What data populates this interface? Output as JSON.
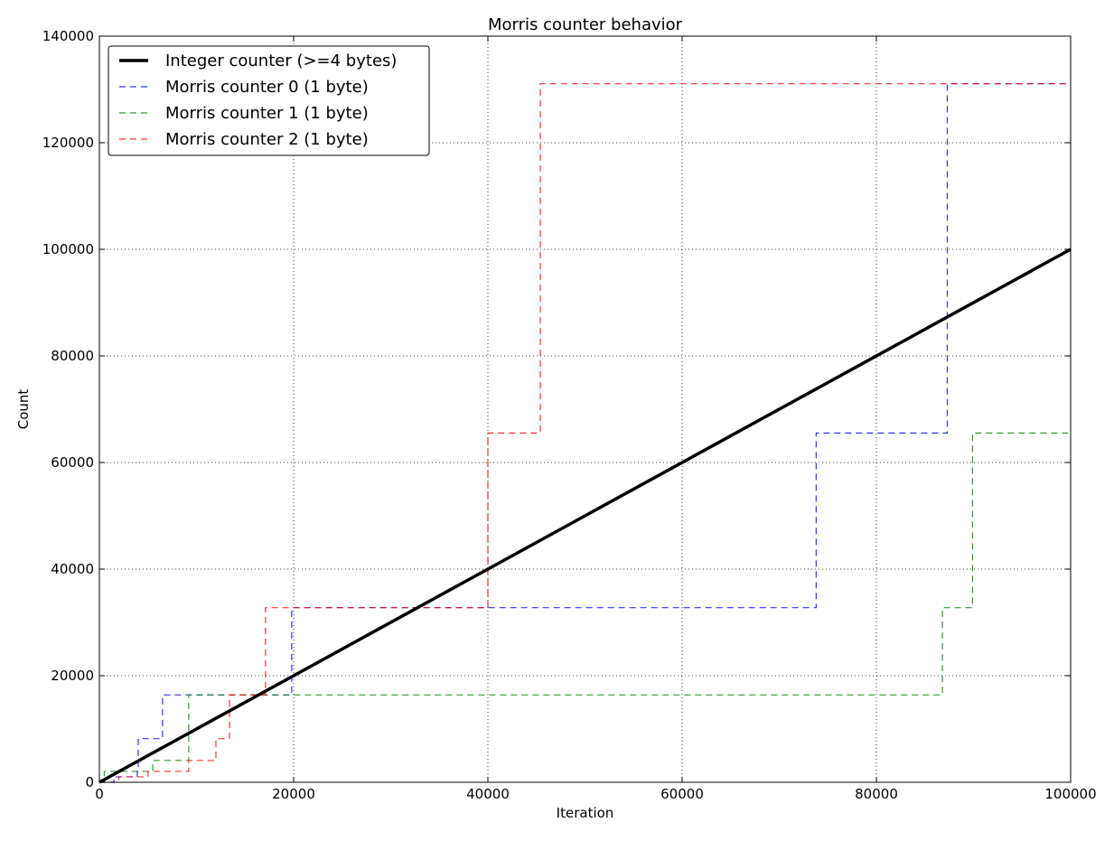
{
  "chart_data": {
    "type": "line",
    "title": "Morris counter behavior",
    "xlabel": "Iteration",
    "ylabel": "Count",
    "xlim": [
      0,
      100000
    ],
    "ylim": [
      0,
      140000
    ],
    "xticks": [
      0,
      20000,
      40000,
      60000,
      80000,
      100000
    ],
    "yticks": [
      0,
      20000,
      40000,
      60000,
      80000,
      100000,
      120000,
      140000
    ],
    "xtick_labels": [
      "0",
      "20000",
      "40000",
      "60000",
      "80000",
      "100000"
    ],
    "ytick_labels": [
      "0",
      "20000",
      "40000",
      "60000",
      "80000",
      "100000",
      "120000",
      "140000"
    ],
    "grid": true,
    "legend_position": "top-left",
    "series": [
      {
        "name": "Integer counter (>=4 bytes)",
        "color": "#000000",
        "style": "solid",
        "x": [
          0,
          100000
        ],
        "y": [
          0,
          100000
        ]
      },
      {
        "name": "Morris counter 0 (1 byte)",
        "color": "#0000ff",
        "style": "dashed",
        "step": true,
        "x": [
          0,
          1500,
          3900,
          4000,
          6500,
          19800,
          73800,
          87300,
          100000
        ],
        "y": [
          0,
          1024,
          2048,
          8192,
          16384,
          32768,
          65536,
          131072,
          131072
        ]
      },
      {
        "name": "Morris counter 1 (1 byte)",
        "color": "#008000",
        "style": "dashed",
        "step": true,
        "x": [
          0,
          500,
          5500,
          9200,
          86800,
          89900,
          100000
        ],
        "y": [
          0,
          2048,
          4096,
          16384,
          32768,
          65536,
          65536
        ]
      },
      {
        "name": "Morris counter 2 (1 byte)",
        "color": "#ff0000",
        "style": "dashed",
        "step": true,
        "x": [
          0,
          2000,
          5000,
          9200,
          12000,
          13400,
          17100,
          40000,
          45400,
          100000
        ],
        "y": [
          0,
          1024,
          2048,
          4096,
          8192,
          16384,
          32768,
          65536,
          131072,
          131072
        ]
      }
    ]
  }
}
